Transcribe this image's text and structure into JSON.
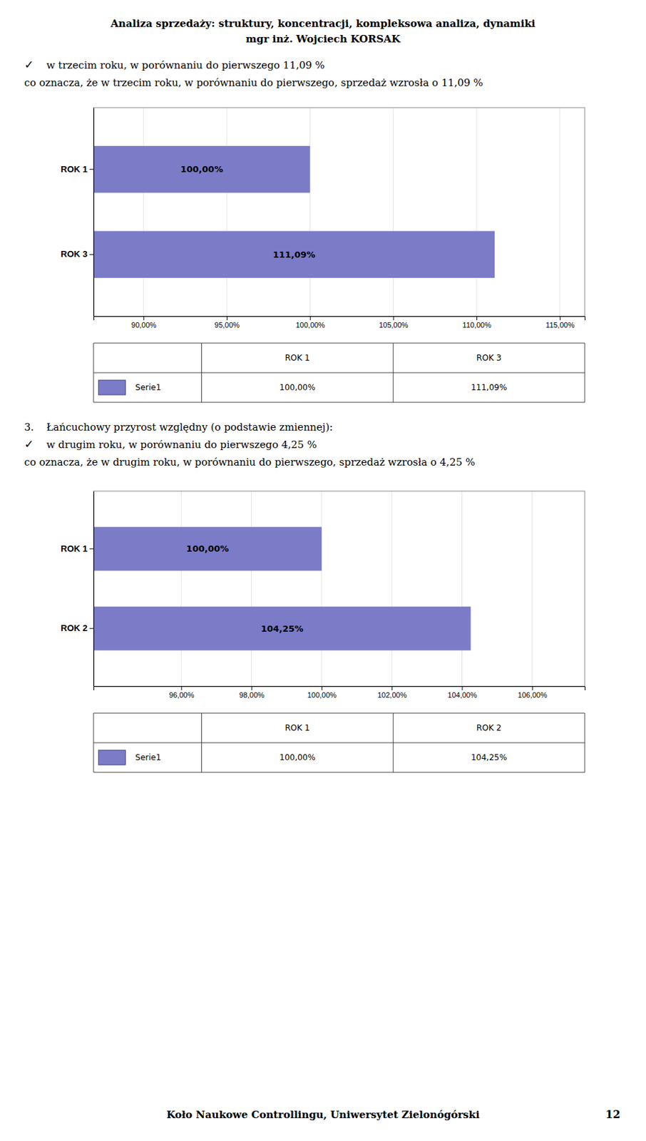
{
  "title": "Analiza sprzedaży: struktury, koncentracji, kompleksowa analiza, dynamiki",
  "subtitle": "mgr inż. Wojciech KORSAK",
  "annotations": [
    "Koło Naukowe Controllingu, Uniwersytet Zielonógórski",
    "12"
  ],
  "chart_data": [
    {
      "type": "bar",
      "orientation": "horizontal",
      "annotations": [
        [
          "✓",
          "w trzecim roku, w porównaniu do pierwszego 11,09 %"
        ],
        [
          "co oznacza, że w trzecim roku, w porównaniu do pierwszego, sprzedaż wzrosła o 11,09 %"
        ]
      ],
      "categories": [
        "ROK 3",
        "ROK 1"
      ],
      "series": [
        {
          "name": "Serie1",
          "color": "#7b7bc8",
          "values": [
            111.09,
            100.0
          ],
          "value_labels": [
            "111,09%",
            "100,00%"
          ]
        }
      ],
      "data_labels": true,
      "grid": true,
      "xlim": [
        87.0,
        116.5
      ],
      "xticks": [
        {
          "value": 90.0,
          "label": "90,00%"
        },
        {
          "value": 95.0,
          "label": "95,00%"
        },
        {
          "value": 100.0,
          "label": "100,00%"
        },
        {
          "value": 105.0,
          "label": "105,00%"
        },
        {
          "value": 110.0,
          "label": "110,00%"
        },
        {
          "value": 115.0,
          "label": "115,00%"
        }
      ],
      "table": {
        "categories": [
          "ROK 1",
          "ROK 3"
        ],
        "labels": [
          "100,00%",
          "111,09%"
        ]
      }
    },
    {
      "type": "bar",
      "orientation": "horizontal",
      "annotations": [
        [
          "3.",
          "Łańcuchowy przyrost względny (o podstawie zmiennej):"
        ],
        [
          "✓",
          "w drugim roku, w porównaniu do pierwszego 4,25 %"
        ],
        [
          "co oznacza, że w drugim roku, w porównaniu do pierwszego, sprzedaż wzrosła o 4,25 %"
        ]
      ],
      "categories": [
        "ROK 2",
        "ROK 1"
      ],
      "series": [
        {
          "name": "Serie1",
          "color": "#7b7bc8",
          "values": [
            104.25,
            100.0
          ],
          "value_labels": [
            "104,25%",
            "100,00%"
          ]
        }
      ],
      "data_labels": true,
      "grid": true,
      "xlim": [
        93.5,
        107.5
      ],
      "xticks": [
        {
          "value": 96.0,
          "label": "96,00%"
        },
        {
          "value": 98.0,
          "label": "98,00%"
        },
        {
          "value": 100.0,
          "label": "100,00%"
        },
        {
          "value": 102.0,
          "label": "102,00%"
        },
        {
          "value": 104.0,
          "label": "104,00%"
        },
        {
          "value": 106.0,
          "label": "106,00%"
        }
      ],
      "table": {
        "categories": [
          "ROK 1",
          "ROK 2"
        ],
        "labels": [
          "100,00%",
          "104,25%"
        ]
      }
    }
  ]
}
